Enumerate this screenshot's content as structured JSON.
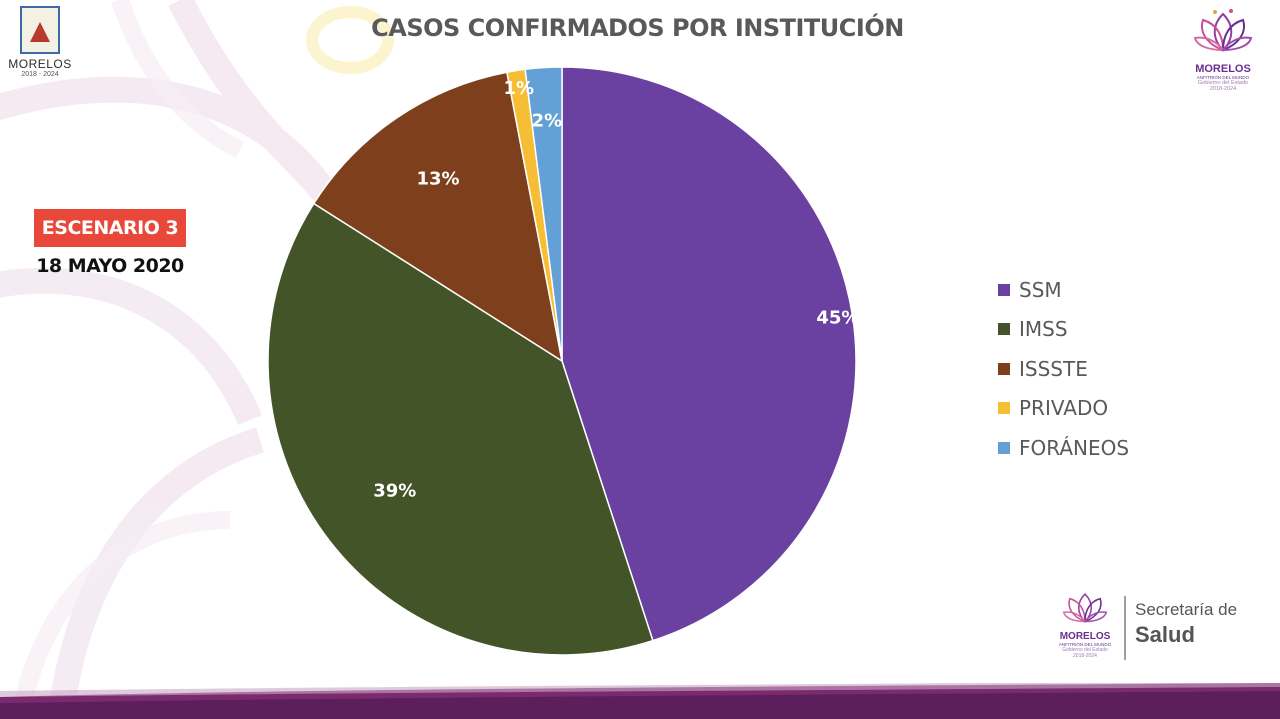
{
  "header": {
    "title": "CASOS CONFIRMADOS POR INSTITUCIÓN"
  },
  "badge": {
    "label": "ESCENARIO 3",
    "color": "#e8473a"
  },
  "date": "18 MAYO 2020",
  "logos": {
    "left": {
      "name": "MORELOS",
      "years": "2018 - 2024"
    },
    "right": {
      "name": "MORELOS",
      "sub": "ANFITRIÓN DEL MUNDO",
      "gov": "Gobierno del Estado",
      "years": "2018-2024"
    },
    "bottom": {
      "name": "MORELOS",
      "sub": "ANFITRIÓN DEL MUNDO",
      "gov": "Gobierno del Estado",
      "years": "2018-2024",
      "secretaria": "Secretaría de",
      "salud": "Salud"
    }
  },
  "chart_data": {
    "type": "pie",
    "title": "CASOS CONFIRMADOS POR INSTITUCIÓN",
    "categories": [
      "SSM",
      "IMSS",
      "ISSSTE",
      "PRIVADO",
      "FORÁNEOS"
    ],
    "values": [
      45,
      39,
      13,
      1,
      2
    ],
    "labels": [
      "45%",
      "39%",
      "13%",
      "1%",
      "2%"
    ],
    "colors": [
      "#6a41a0",
      "#435428",
      "#7e401c",
      "#f6be35",
      "#62a0d6"
    ],
    "legend_position": "right"
  }
}
